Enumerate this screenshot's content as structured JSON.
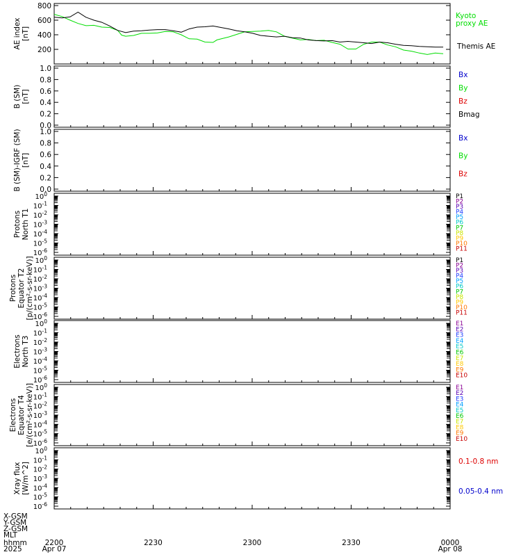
{
  "colors": {
    "black": "#000000",
    "green": "#00dd00",
    "blue": "#0000cc",
    "red": "#dd0000",
    "series_palette": [
      "#000000",
      "#8a0094",
      "#5a00b4",
      "#1e3cff",
      "#00a0ff",
      "#00c8c8",
      "#00c800",
      "#c8e600",
      "#ffc800",
      "#ff7800",
      "#c80000"
    ]
  },
  "chart_data": [
    {
      "type": "line",
      "panel": "ae",
      "ylabel_lines": [
        "AE index",
        "[nT]"
      ],
      "ylim": [
        0,
        800
      ],
      "yticks": [
        "800",
        "600",
        "400",
        "200"
      ],
      "ytick_values": [
        800,
        600,
        400,
        200
      ],
      "series": [
        {
          "name": "Kyoto proxy AE",
          "color": "#00dd00",
          "label_lines": [
            "Kyoto",
            "proxy AE"
          ],
          "points": [
            [
              0,
              680
            ],
            [
              1,
              650
            ],
            [
              2,
              600
            ],
            [
              3,
              555
            ],
            [
              4,
              525
            ],
            [
              5,
              530
            ],
            [
              6,
              505
            ],
            [
              7,
              500
            ],
            [
              8,
              460
            ],
            [
              8.5,
              395
            ],
            [
              9,
              380
            ],
            [
              10,
              390
            ],
            [
              11,
              420
            ],
            [
              12,
              420
            ],
            [
              13,
              425
            ],
            [
              14,
              445
            ],
            [
              15,
              440
            ],
            [
              16,
              400
            ],
            [
              17,
              345
            ],
            [
              18,
              340
            ],
            [
              19,
              300
            ],
            [
              20,
              295
            ],
            [
              20.5,
              330
            ],
            [
              22,
              370
            ],
            [
              24,
              440
            ],
            [
              26,
              450
            ],
            [
              27,
              460
            ],
            [
              28,
              440
            ],
            [
              29,
              380
            ],
            [
              31,
              330
            ],
            [
              32,
              335
            ],
            [
              33,
              320
            ],
            [
              34,
              325
            ],
            [
              35,
              295
            ],
            [
              36,
              270
            ],
            [
              37,
              205
            ],
            [
              38,
              205
            ],
            [
              39,
              270
            ],
            [
              40,
              300
            ],
            [
              41,
              300
            ],
            [
              42,
              260
            ],
            [
              43,
              235
            ],
            [
              44,
              190
            ],
            [
              45,
              175
            ],
            [
              46,
              150
            ],
            [
              47,
              130
            ],
            [
              48,
              150
            ],
            [
              49,
              140
            ]
          ]
        },
        {
          "name": "Themis AE",
          "color": "#000000",
          "label_lines": [
            "Themis AE"
          ],
          "points": [
            [
              0,
              640
            ],
            [
              1,
              630
            ],
            [
              2,
              645
            ],
            [
              3,
              710
            ],
            [
              4,
              640
            ],
            [
              5,
              600
            ],
            [
              6,
              570
            ],
            [
              7,
              520
            ],
            [
              8,
              460
            ],
            [
              9,
              430
            ],
            [
              10,
              450
            ],
            [
              11,
              455
            ],
            [
              12,
              465
            ],
            [
              13,
              470
            ],
            [
              14,
              470
            ],
            [
              15,
              455
            ],
            [
              16,
              435
            ],
            [
              17,
              480
            ],
            [
              18,
              505
            ],
            [
              19,
              510
            ],
            [
              20,
              520
            ],
            [
              21,
              500
            ],
            [
              22,
              480
            ],
            [
              23,
              455
            ],
            [
              24,
              440
            ],
            [
              25,
              420
            ],
            [
              26,
              390
            ],
            [
              27,
              380
            ],
            [
              28,
              370
            ],
            [
              29,
              380
            ],
            [
              30,
              360
            ],
            [
              31,
              355
            ],
            [
              32,
              330
            ],
            [
              33,
              320
            ],
            [
              34,
              315
            ],
            [
              35,
              320
            ],
            [
              36,
              300
            ],
            [
              37,
              310
            ],
            [
              38,
              300
            ],
            [
              39,
              290
            ],
            [
              40,
              280
            ],
            [
              41,
              300
            ],
            [
              42,
              290
            ],
            [
              43,
              270
            ],
            [
              44,
              255
            ],
            [
              45,
              250
            ],
            [
              46,
              240
            ],
            [
              47,
              235
            ],
            [
              48,
              230
            ],
            [
              49,
              230
            ]
          ]
        }
      ]
    },
    {
      "type": "line",
      "panel": "b_sm",
      "ylabel_lines": [
        "B (SM)",
        "[nT]"
      ],
      "ylim": [
        0,
        1
      ],
      "yticks": [
        "1.0",
        "0.8",
        "0.6",
        "0.4",
        "0.2",
        "0.0"
      ],
      "ytick_values": [
        1.0,
        0.8,
        0.6,
        0.4,
        0.2,
        0.0
      ],
      "series": [
        {
          "name": "Bx",
          "color": "#0000cc"
        },
        {
          "name": "By",
          "color": "#00dd00"
        },
        {
          "name": "Bz",
          "color": "#dd0000"
        },
        {
          "name": "Bmag",
          "color": "#000000"
        }
      ]
    },
    {
      "type": "line",
      "panel": "b_igrf",
      "ylabel_lines": [
        "B (SM)-IGRF (SM)",
        "[nT]"
      ],
      "ylim": [
        0,
        1
      ],
      "yticks": [
        "1.0",
        "0.8",
        "0.6",
        "0.4",
        "0.2",
        "0.0"
      ],
      "ytick_values": [
        1.0,
        0.8,
        0.6,
        0.4,
        0.2,
        0.0
      ],
      "series": [
        {
          "name": "Bx",
          "color": "#0000cc"
        },
        {
          "name": "By",
          "color": "#00dd00"
        },
        {
          "name": "Bz",
          "color": "#dd0000"
        }
      ]
    },
    {
      "type": "line",
      "panel": "protons_t1",
      "scale": "log",
      "ylabel_lines": [
        "Protons",
        "North T1"
      ],
      "ylim": [
        1e-06,
        1
      ],
      "series_labels": [
        "P1",
        "P2",
        "P3",
        "P4",
        "P5",
        "P6",
        "P7",
        "P8",
        "P9",
        "P10",
        "P11"
      ]
    },
    {
      "type": "line",
      "panel": "protons_t2",
      "scale": "log",
      "ylabel_lines": [
        "Protons",
        "Equator T2",
        "[p/(cm²-s-sr-keV)]"
      ],
      "ylim": [
        1e-06,
        1
      ],
      "series_labels": [
        "P1",
        "P2",
        "P3",
        "P4",
        "P5",
        "P6",
        "P7",
        "P8",
        "P9",
        "P10",
        "P11"
      ]
    },
    {
      "type": "line",
      "panel": "electrons_t3",
      "scale": "log",
      "ylabel_lines": [
        "Electrons",
        "North T3"
      ],
      "ylim": [
        1e-06,
        1
      ],
      "series_labels": [
        "E1",
        "E2",
        "E3",
        "E4",
        "E5",
        "E6",
        "E7",
        "E8",
        "E9",
        "E10"
      ]
    },
    {
      "type": "line",
      "panel": "electrons_t4",
      "scale": "log",
      "ylabel_lines": [
        "Electrons",
        "Equator T4",
        "[e/(cm²-s-sr-keV)]"
      ],
      "ylim": [
        1e-06,
        1
      ],
      "series_labels": [
        "E1",
        "E2",
        "E3",
        "E4",
        "E5",
        "E6",
        "E7",
        "E8",
        "E9",
        "E10"
      ]
    },
    {
      "type": "line",
      "panel": "xray",
      "scale": "log",
      "ylabel_lines": [
        "Xray flux",
        "[W/m^2]"
      ],
      "ylim": [
        1e-06,
        1
      ],
      "series": [
        {
          "name": "0.1-0.8 nm",
          "color": "#dd0000"
        },
        {
          "name": "0.05-0.4 nm",
          "color": "#0000cc"
        }
      ]
    }
  ],
  "log_ticks": {
    "mantissa": "10",
    "exponents": [
      "0",
      "-1",
      "-2",
      "-3",
      "-4",
      "-5",
      "-6"
    ],
    "values": [
      0,
      -1,
      -2,
      -3,
      -4,
      -5,
      -6
    ]
  },
  "time_axis": {
    "x_max": 120,
    "ae_x_max": 49,
    "row_labels": [
      "X-GSM",
      "Y-GSM",
      "Z-GSM",
      "MLT",
      "hhmm",
      "2025"
    ],
    "ticks": [
      {
        "t": 0,
        "hhmm": "2200",
        "date": "Apr 07"
      },
      {
        "t": 30,
        "hhmm": "2230",
        "date": ""
      },
      {
        "t": 60,
        "hhmm": "2300",
        "date": ""
      },
      {
        "t": 90,
        "hhmm": "2330",
        "date": ""
      },
      {
        "t": 120,
        "hhmm": "0000",
        "date": "Apr 08"
      }
    ]
  }
}
